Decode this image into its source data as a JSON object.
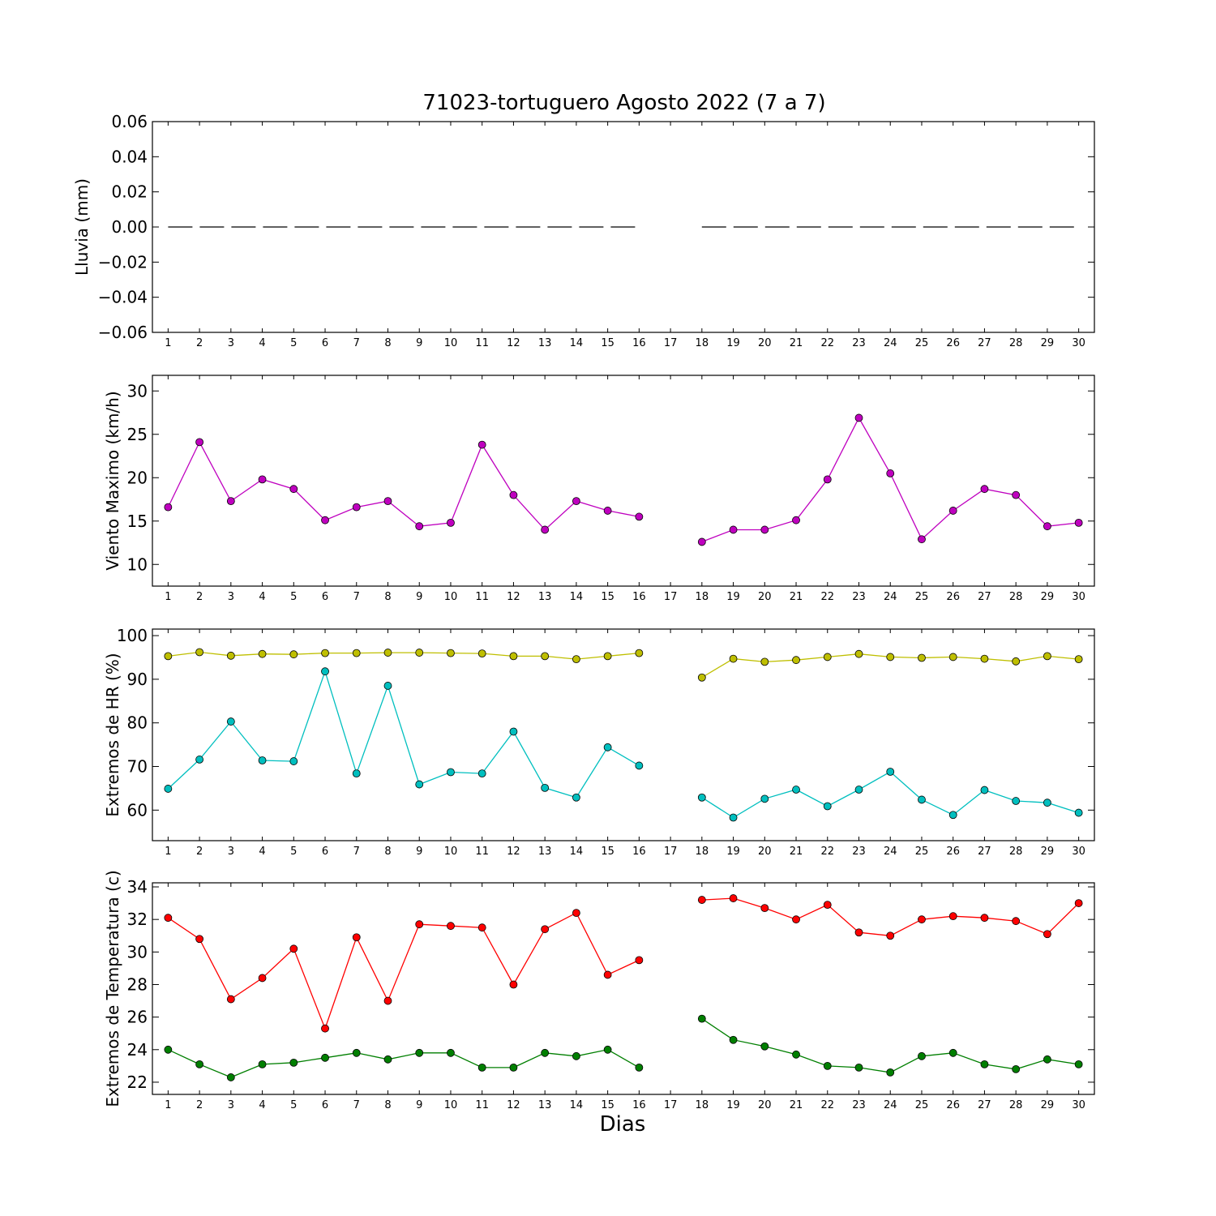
{
  "figure": {
    "title": "71023-tortuguero Agosto 2022  (7 a 7)",
    "xlabel": "Dias"
  },
  "chart_data": [
    {
      "type": "line",
      "ylabel": "Lluvia (mm)",
      "ylim": [
        -0.06,
        0.06
      ],
      "yticks": [
        -0.06,
        -0.04,
        -0.02,
        0.0,
        0.02,
        0.04,
        0.06
      ],
      "ytick_labels": [
        "−0.06",
        "−0.04",
        "−0.02",
        "0.00",
        "0.02",
        "0.04",
        "0.06"
      ],
      "x": [
        1,
        2,
        3,
        4,
        5,
        6,
        7,
        8,
        9,
        10,
        11,
        12,
        13,
        14,
        15,
        16,
        17,
        18,
        19,
        20,
        21,
        22,
        23,
        24,
        25,
        26,
        27,
        28,
        29,
        30
      ],
      "series": [
        {
          "color": "#000000",
          "style": "dashed",
          "marker": "none",
          "values": [
            0,
            0,
            0,
            0,
            0,
            0,
            0,
            0,
            0,
            0,
            0,
            0,
            0,
            0,
            0,
            0,
            null,
            0,
            0,
            0,
            0,
            0,
            0,
            0,
            0,
            0,
            0,
            0,
            0,
            0
          ]
        }
      ]
    },
    {
      "type": "line",
      "ylabel": "Viento Maximo (km/h)",
      "ylim": [
        7.5,
        31.8
      ],
      "yticks": [
        10,
        15,
        20,
        25,
        30
      ],
      "ytick_labels": [
        "10",
        "15",
        "20",
        "25",
        "30"
      ],
      "x": [
        1,
        2,
        3,
        4,
        5,
        6,
        7,
        8,
        9,
        10,
        11,
        12,
        13,
        14,
        15,
        16,
        17,
        18,
        19,
        20,
        21,
        22,
        23,
        24,
        25,
        26,
        27,
        28,
        29,
        30
      ],
      "series": [
        {
          "color": "#bf00bf",
          "marker": "circle",
          "values": [
            16.6,
            24.1,
            17.3,
            19.8,
            18.7,
            15.1,
            16.6,
            17.3,
            14.4,
            14.8,
            23.8,
            18.0,
            14.0,
            17.3,
            16.2,
            15.5,
            null,
            12.6,
            14.0,
            14.0,
            15.1,
            19.8,
            26.9,
            20.5,
            12.9,
            16.2,
            18.7,
            18.0,
            14.4,
            14.8
          ]
        }
      ]
    },
    {
      "type": "line",
      "ylabel": "Extremos de HR (%)",
      "ylim": [
        53.0,
        101.5
      ],
      "yticks": [
        60,
        70,
        80,
        90,
        100
      ],
      "ytick_labels": [
        "60",
        "70",
        "80",
        "90",
        "100"
      ],
      "x": [
        1,
        2,
        3,
        4,
        5,
        6,
        7,
        8,
        9,
        10,
        11,
        12,
        13,
        14,
        15,
        16,
        17,
        18,
        19,
        20,
        21,
        22,
        23,
        24,
        25,
        26,
        27,
        28,
        29,
        30
      ],
      "series": [
        {
          "color": "#bfbf00",
          "marker": "circle",
          "values": [
            95.3,
            96.2,
            95.4,
            95.8,
            95.7,
            96.0,
            96.0,
            96.1,
            96.1,
            96.0,
            95.9,
            95.3,
            95.3,
            94.6,
            95.3,
            96.0,
            null,
            90.4,
            94.7,
            94.0,
            94.4,
            95.1,
            95.8,
            95.1,
            94.9,
            95.1,
            94.7,
            94.1,
            95.3,
            94.6
          ]
        },
        {
          "color": "#00bfbf",
          "marker": "circle",
          "values": [
            64.9,
            71.6,
            80.3,
            71.4,
            71.2,
            91.8,
            68.4,
            88.5,
            65.9,
            68.7,
            68.4,
            78.0,
            65.1,
            62.9,
            74.4,
            70.2,
            null,
            62.9,
            58.3,
            62.6,
            64.7,
            60.9,
            64.7,
            68.8,
            62.4,
            58.9,
            64.6,
            62.1,
            61.7,
            59.4
          ]
        }
      ]
    },
    {
      "type": "line",
      "ylabel": "Extremos de Temperatura (c)",
      "ylim": [
        21.25,
        34.25
      ],
      "yticks": [
        22,
        24,
        26,
        28,
        30,
        32,
        34
      ],
      "ytick_labels": [
        "22",
        "24",
        "26",
        "28",
        "30",
        "32",
        "34"
      ],
      "x": [
        1,
        2,
        3,
        4,
        5,
        6,
        7,
        8,
        9,
        10,
        11,
        12,
        13,
        14,
        15,
        16,
        17,
        18,
        19,
        20,
        21,
        22,
        23,
        24,
        25,
        26,
        27,
        28,
        29,
        30
      ],
      "series": [
        {
          "color": "#ff0000",
          "marker": "circle",
          "values": [
            32.1,
            30.8,
            27.1,
            28.4,
            30.2,
            25.3,
            30.9,
            27.0,
            31.7,
            31.6,
            31.5,
            28.0,
            31.4,
            32.4,
            28.6,
            29.5,
            null,
            33.2,
            33.3,
            32.7,
            32.0,
            32.9,
            31.2,
            31.0,
            32.0,
            32.2,
            32.1,
            31.9,
            31.1,
            33.0
          ]
        },
        {
          "color": "#007f00",
          "marker": "circle",
          "values": [
            24.0,
            23.1,
            22.3,
            23.1,
            23.2,
            23.5,
            23.8,
            23.4,
            23.8,
            23.8,
            22.9,
            22.9,
            23.8,
            23.6,
            24.0,
            22.9,
            null,
            25.9,
            24.6,
            24.2,
            23.7,
            23.0,
            22.9,
            22.6,
            23.6,
            23.8,
            23.1,
            22.8,
            23.4,
            23.1
          ]
        }
      ]
    }
  ]
}
